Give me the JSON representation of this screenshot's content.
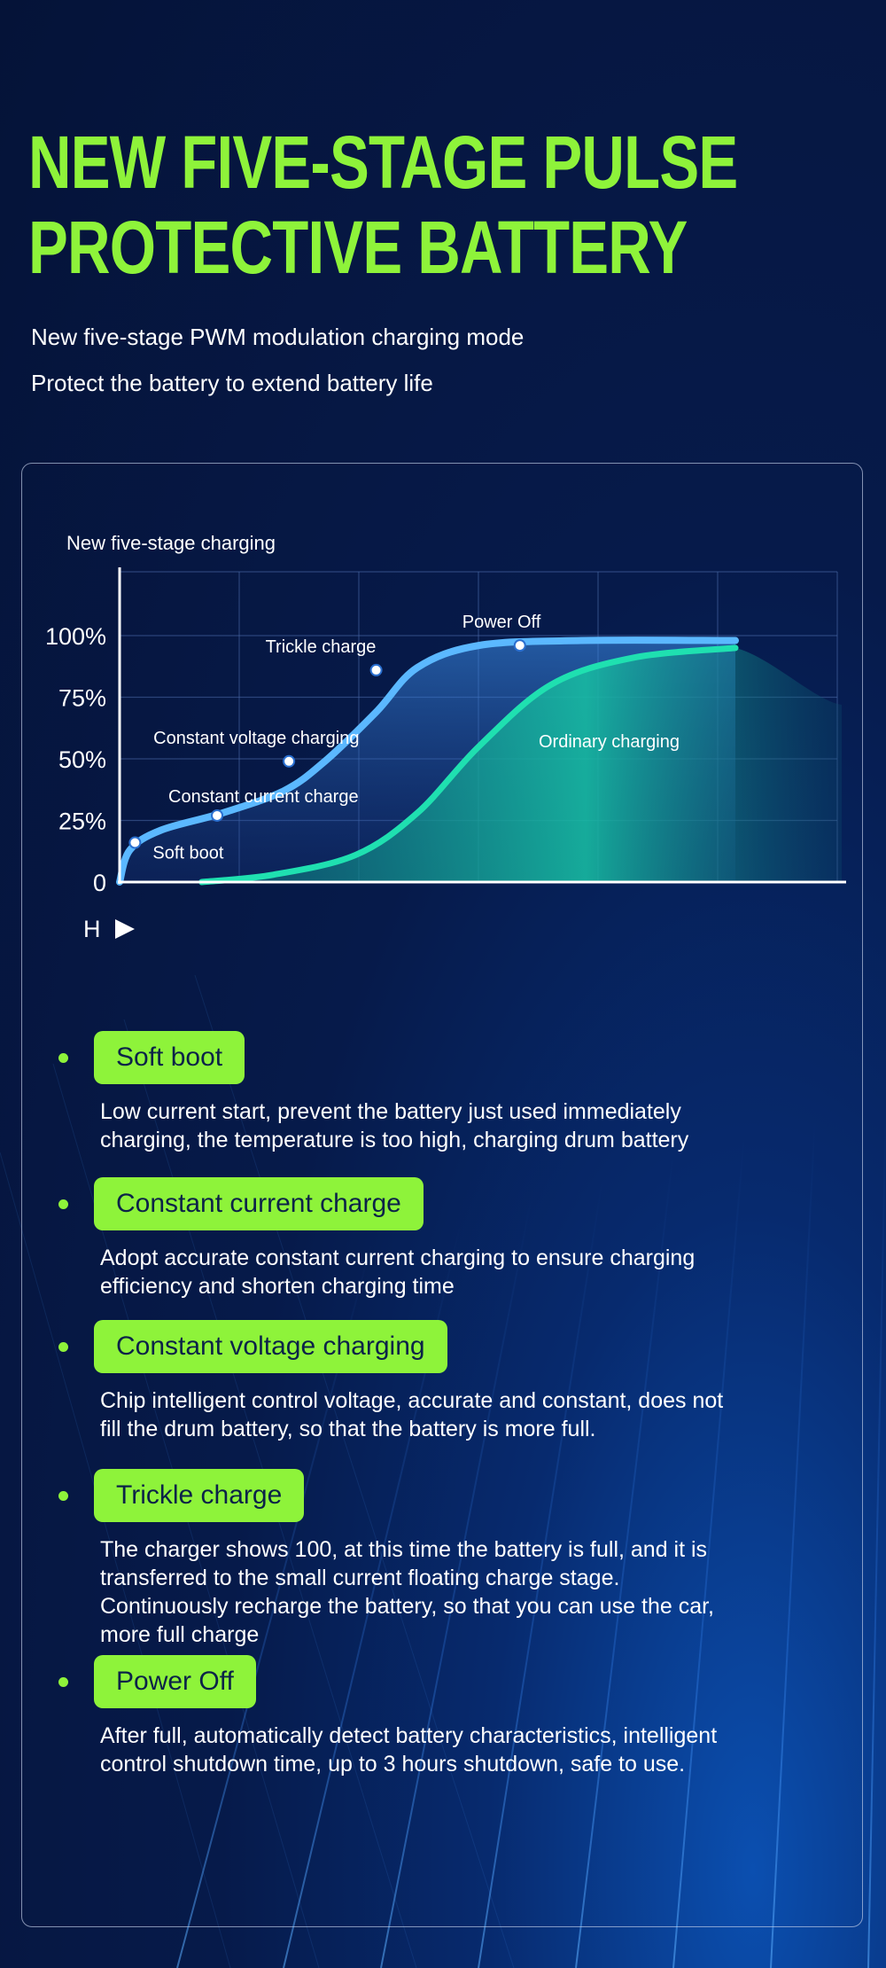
{
  "header": {
    "title_line1": "NEW FIVE-STAGE PULSE",
    "title_line2": "PROTECTIVE BATTERY",
    "subtitle_line1": "New five-stage PWM modulation charging mode",
    "subtitle_line2": "Protect the battery to extend battery life"
  },
  "colors": {
    "accent_green": "#8ef33a",
    "five_stage_curve": "#5bb8ff",
    "ordinary_curve": "#1fe0b0",
    "background": "#061a4a"
  },
  "chart_data": {
    "type": "line",
    "title": "New five-stage charging",
    "xlabel": "H",
    "y_ticks": [
      "0",
      "25%",
      "50%",
      "75%",
      "100%"
    ],
    "ylim": [
      0,
      100
    ],
    "grid": true,
    "series": [
      {
        "name": "Five-stage charging",
        "points": [
          {
            "x": 0.0,
            "y": 0
          },
          {
            "x": 0.1,
            "y": 13
          },
          {
            "x": 0.4,
            "y": 21
          },
          {
            "x": 1.0,
            "y": 28
          },
          {
            "x": 1.6,
            "y": 37
          },
          {
            "x": 2.0,
            "y": 49
          },
          {
            "x": 2.5,
            "y": 69
          },
          {
            "x": 2.9,
            "y": 87
          },
          {
            "x": 3.5,
            "y": 96
          },
          {
            "x": 4.5,
            "y": 98
          },
          {
            "x": 6.0,
            "y": 98
          }
        ]
      },
      {
        "name": "Ordinary charging",
        "points": [
          {
            "x": 0.8,
            "y": 0
          },
          {
            "x": 1.5,
            "y": 3
          },
          {
            "x": 2.3,
            "y": 11
          },
          {
            "x": 2.9,
            "y": 28
          },
          {
            "x": 3.5,
            "y": 55
          },
          {
            "x": 4.2,
            "y": 80
          },
          {
            "x": 5.0,
            "y": 91
          },
          {
            "x": 6.0,
            "y": 95
          }
        ]
      }
    ],
    "markers": [
      {
        "label": "Soft boot",
        "x": 0.15,
        "y": 16
      },
      {
        "label": "Constant current charge",
        "x": 0.95,
        "y": 27
      },
      {
        "label": "Constant voltage charging",
        "x": 1.65,
        "y": 49
      },
      {
        "label": "Trickle charge",
        "x": 2.5,
        "y": 86
      },
      {
        "label": "Power Off",
        "x": 3.9,
        "y": 96
      }
    ],
    "annotation": "Ordinary charging"
  },
  "stages": [
    {
      "label": "Soft boot",
      "lines": [
        "Low current start, prevent the battery just used immediately",
        "charging, the temperature is too high, charging drum battery"
      ]
    },
    {
      "label": "Constant current charge",
      "lines": [
        "Adopt accurate constant current charging to ensure charging",
        "efficiency and shorten charging time"
      ]
    },
    {
      "label": "Constant voltage charging",
      "lines": [
        "Chip intelligent control voltage, accurate and constant, does not",
        "fill the drum battery, so that the battery is more full."
      ]
    },
    {
      "label": "Trickle charge",
      "lines": [
        "The charger shows 100, at this time the battery is full, and it is",
        "transferred to the small current floating charge stage.",
        "Continuously recharge the battery, so that you can use the car,",
        "more full charge"
      ]
    },
    {
      "label": "Power Off",
      "lines": [
        "After full, automatically detect battery characteristics, intelligent",
        "control shutdown time, up to 3 hours shutdown, safe to use."
      ]
    }
  ]
}
